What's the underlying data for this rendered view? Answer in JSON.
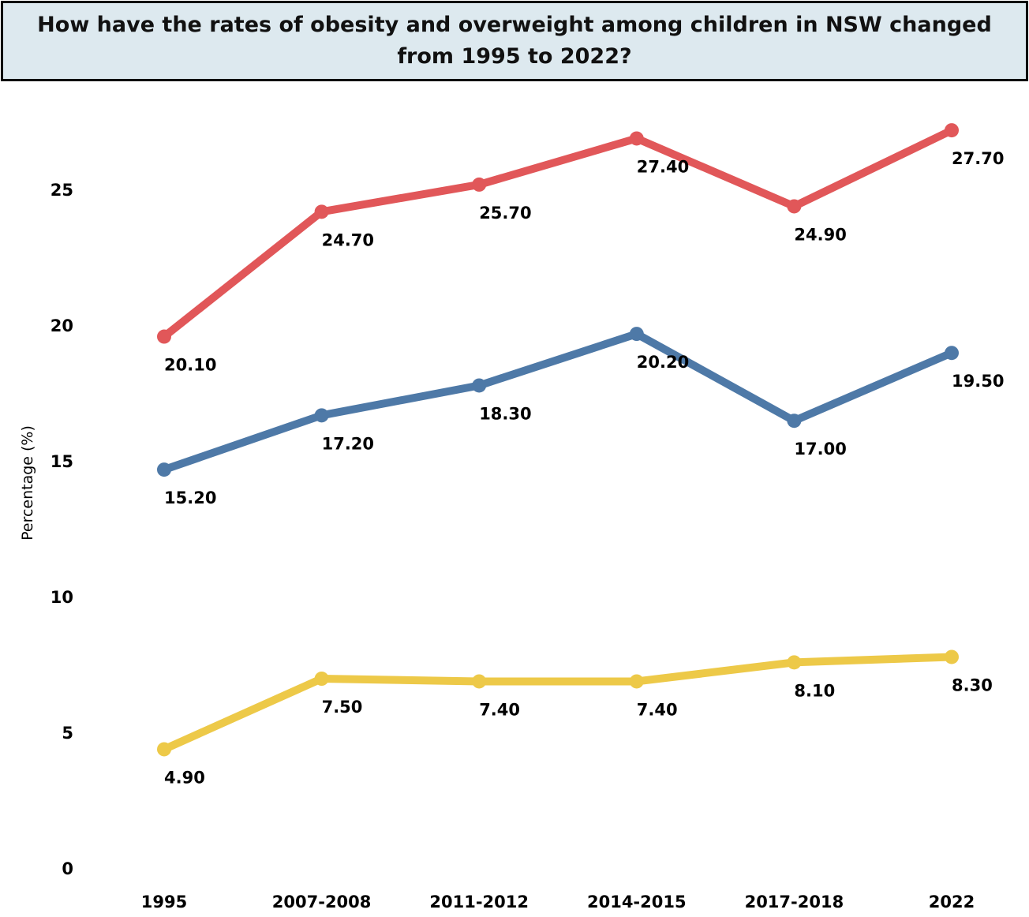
{
  "chart_data": {
    "type": "line",
    "title": "How have the rates of obesity and overweight among children in NSW changed from 1995 to 2022?",
    "xlabel": "",
    "ylabel": "Percentage (%)",
    "categories": [
      "1995",
      "2007-2008",
      "2011-2012",
      "2014-2015",
      "2017-2018",
      "2022"
    ],
    "yticks": [
      0,
      5,
      10,
      15,
      20,
      25
    ],
    "ylim": [
      0,
      29
    ],
    "grid": false,
    "legend": "none",
    "series": [
      {
        "values": [
          20.1,
          24.7,
          25.7,
          27.4,
          24.9,
          27.7
        ],
        "labels": [
          "20.10",
          "24.70",
          "25.70",
          "27.40",
          "24.90",
          "27.70"
        ],
        "color": "#e15759"
      },
      {
        "values": [
          15.2,
          17.2,
          18.3,
          20.2,
          17.0,
          19.5
        ],
        "labels": [
          "15.20",
          "17.20",
          "18.30",
          "20.20",
          "17.00",
          "19.50"
        ],
        "color": "#4e79a7"
      },
      {
        "values": [
          4.9,
          7.5,
          7.4,
          7.4,
          8.1,
          8.3
        ],
        "labels": [
          "4.90",
          "7.50",
          "7.40",
          "7.40",
          "8.10",
          "8.30"
        ],
        "color": "#edc948"
      }
    ]
  }
}
